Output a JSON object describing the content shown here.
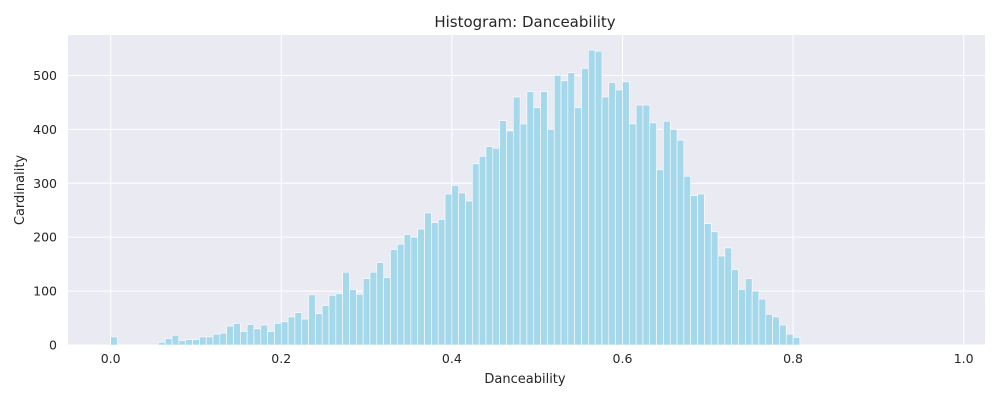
{
  "chart_data": {
    "type": "bar",
    "title": "Histogram: Danceability",
    "xlabel": "Danceability",
    "ylabel": "Cardinality",
    "xlim": [
      -0.05,
      1.025
    ],
    "ylim": [
      0,
      575
    ],
    "xticks": [
      0.0,
      0.2,
      0.4,
      0.6,
      0.8,
      1.0
    ],
    "xtick_labels": [
      "0.0",
      "0.2",
      "0.4",
      "0.6",
      "0.8",
      "1.0"
    ],
    "yticks": [
      0,
      100,
      200,
      300,
      400,
      500
    ],
    "ytick_labels": [
      "0",
      "100",
      "200",
      "300",
      "400",
      "500"
    ],
    "grid": true,
    "bar_color": "#a5d8ea",
    "background_color": "#eaeaf2",
    "bin_start": 0.0,
    "bin_width": 0.008,
    "values": [
      15,
      0,
      0,
      0,
      0,
      0,
      0,
      5,
      12,
      18,
      8,
      10,
      10,
      15,
      15,
      20,
      22,
      35,
      40,
      25,
      38,
      30,
      37,
      25,
      40,
      43,
      52,
      60,
      48,
      93,
      58,
      73,
      92,
      95,
      135,
      103,
      94,
      123,
      135,
      153,
      125,
      177,
      187,
      205,
      200,
      215,
      245,
      227,
      233,
      280,
      296,
      282,
      267,
      336,
      350,
      368,
      365,
      416,
      397,
      460,
      410,
      470,
      440,
      470,
      400,
      500,
      490,
      505,
      440,
      513,
      547,
      545,
      460,
      487,
      473,
      488,
      410,
      445,
      445,
      412,
      325,
      415,
      400,
      380,
      313,
      277,
      280,
      225,
      210,
      165,
      180,
      140,
      103,
      123,
      100,
      85,
      57,
      52,
      37,
      20,
      14
    ]
  }
}
